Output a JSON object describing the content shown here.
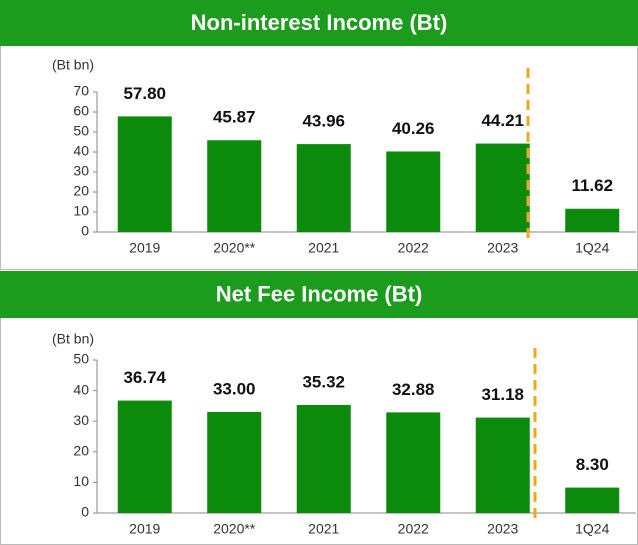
{
  "chart_data": [
    {
      "type": "bar",
      "title": "Non-interest Income (Bt)",
      "y_label": "(Bt bn)",
      "categories": [
        "2019",
        "2020**",
        "2021",
        "2022",
        "2023",
        "1Q24"
      ],
      "values": [
        57.8,
        45.87,
        43.96,
        40.26,
        44.21,
        11.62
      ],
      "value_labels": [
        "57.80",
        "45.87",
        "43.96",
        "40.26",
        "44.21",
        "11.62"
      ],
      "color": "#0b8a0b",
      "ylim": [
        0,
        70
      ],
      "yticks": [
        0,
        10,
        20,
        30,
        40,
        50,
        60,
        70
      ]
    },
    {
      "type": "bar",
      "title": "Net Fee Income (Bt)",
      "y_label": "(Bt bn)",
      "categories": [
        "2019",
        "2020**",
        "2021",
        "2022",
        "2023",
        "1Q24"
      ],
      "values": [
        36.74,
        33.0,
        35.32,
        32.88,
        31.18,
        8.3
      ],
      "value_labels": [
        "36.74",
        "33.00",
        "35.32",
        "32.88",
        "31.18",
        "8.30"
      ],
      "color": "#0b8a0b",
      "ylim": [
        0,
        50
      ],
      "yticks": [
        0,
        10,
        20,
        30,
        40,
        50
      ]
    }
  ]
}
